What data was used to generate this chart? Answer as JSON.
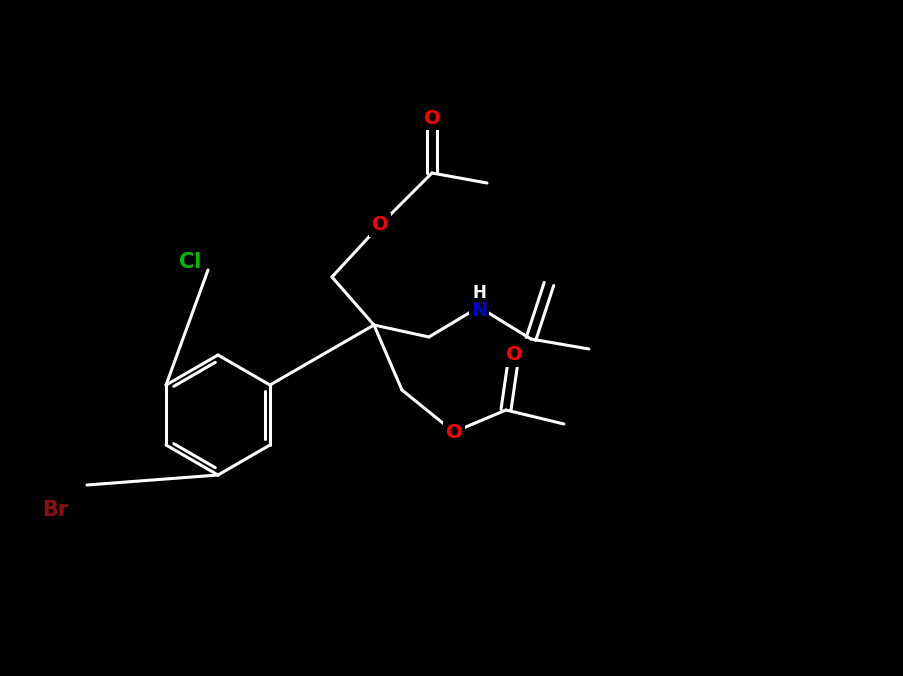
{
  "background_color": "#000000",
  "bond_color": "#ffffff",
  "atom_colors": {
    "O": "#ff0000",
    "N": "#0000cd",
    "Cl": "#00bb00",
    "Br": "#8b1010",
    "H": "#ffffff",
    "C": "#ffffff"
  },
  "figsize": [
    9.04,
    6.76
  ],
  "dpi": 100,
  "lw": 2.2
}
